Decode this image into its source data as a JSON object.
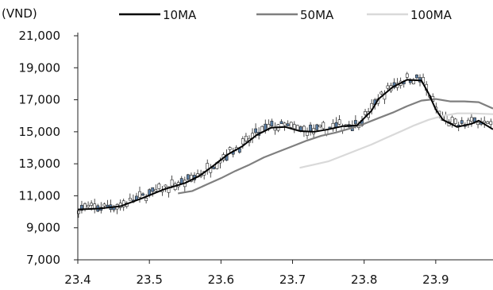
{
  "chart_data": {
    "type": "line",
    "unit_label": "(VND)",
    "ylim": [
      7000,
      21000
    ],
    "xlim": [
      23.4,
      23.98
    ],
    "y_ticks": [
      7000,
      9000,
      11000,
      13000,
      15000,
      17000,
      19000,
      21000
    ],
    "y_tick_labels": [
      "7,000",
      "9,000",
      "11,000",
      "13,000",
      "15,000",
      "17,000",
      "19,000",
      "21,000"
    ],
    "x_ticks": [
      23.4,
      23.5,
      23.6,
      23.7,
      23.8,
      23.9
    ],
    "x_tick_labels": [
      "23.4",
      "23.5",
      "23.6",
      "23.7",
      "23.8",
      "23.9"
    ],
    "legend_position": "top",
    "price_colors": {
      "up": "#ffffff",
      "down": "#5b7fa6",
      "outline": "#222222"
    },
    "series": [
      {
        "name": "10MA",
        "color": "#000000",
        "points": [
          [
            23.4,
            10150
          ],
          [
            23.43,
            10200
          ],
          [
            23.46,
            10350
          ],
          [
            23.49,
            10850
          ],
          [
            23.52,
            11400
          ],
          [
            23.55,
            11800
          ],
          [
            23.57,
            12250
          ],
          [
            23.59,
            12900
          ],
          [
            23.61,
            13600
          ],
          [
            23.63,
            14100
          ],
          [
            23.65,
            14800
          ],
          [
            23.67,
            15250
          ],
          [
            23.69,
            15300
          ],
          [
            23.71,
            15050
          ],
          [
            23.73,
            15000
          ],
          [
            23.75,
            15150
          ],
          [
            23.77,
            15350
          ],
          [
            23.79,
            15400
          ],
          [
            23.81,
            16300
          ],
          [
            23.82,
            17050
          ],
          [
            23.84,
            17800
          ],
          [
            23.86,
            18250
          ],
          [
            23.88,
            18200
          ],
          [
            23.89,
            17400
          ],
          [
            23.9,
            16400
          ],
          [
            23.91,
            15750
          ],
          [
            23.93,
            15300
          ],
          [
            23.95,
            15500
          ],
          [
            23.96,
            15700
          ],
          [
            23.98,
            15150
          ]
        ]
      },
      {
        "name": "50MA",
        "color": "#7f7f7f",
        "points": [
          [
            23.54,
            11150
          ],
          [
            23.56,
            11300
          ],
          [
            23.58,
            11700
          ],
          [
            23.6,
            12100
          ],
          [
            23.62,
            12550
          ],
          [
            23.64,
            12950
          ],
          [
            23.66,
            13400
          ],
          [
            23.68,
            13750
          ],
          [
            23.7,
            14100
          ],
          [
            23.72,
            14450
          ],
          [
            23.74,
            14750
          ],
          [
            23.76,
            14950
          ],
          [
            23.78,
            15200
          ],
          [
            23.8,
            15500
          ],
          [
            23.82,
            15850
          ],
          [
            23.84,
            16200
          ],
          [
            23.86,
            16600
          ],
          [
            23.88,
            16950
          ],
          [
            23.9,
            17050
          ],
          [
            23.92,
            16900
          ],
          [
            23.94,
            16900
          ],
          [
            23.96,
            16850
          ],
          [
            23.98,
            16450
          ]
        ]
      },
      {
        "name": "100MA",
        "color": "#d9d9d9",
        "points": [
          [
            23.71,
            12750
          ],
          [
            23.73,
            12950
          ],
          [
            23.75,
            13150
          ],
          [
            23.77,
            13500
          ],
          [
            23.79,
            13850
          ],
          [
            23.81,
            14200
          ],
          [
            23.83,
            14600
          ],
          [
            23.85,
            15000
          ],
          [
            23.87,
            15400
          ],
          [
            23.89,
            15750
          ],
          [
            23.91,
            16000
          ],
          [
            23.93,
            16150
          ],
          [
            23.95,
            16150
          ],
          [
            23.98,
            16100
          ]
        ]
      }
    ]
  }
}
